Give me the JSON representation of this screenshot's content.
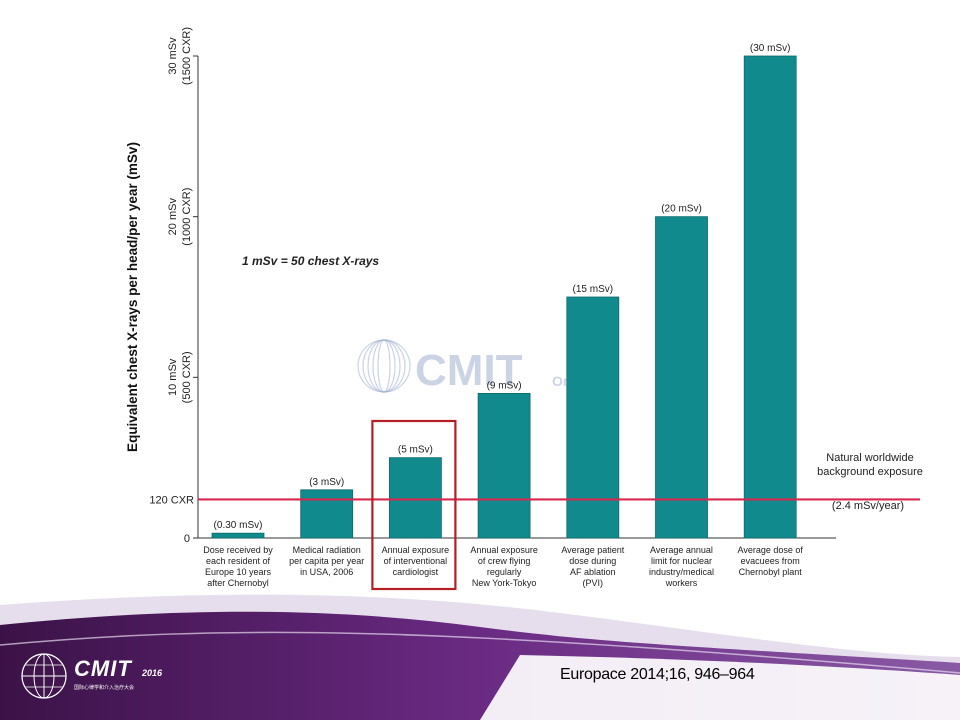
{
  "chart_data": {
    "type": "bar",
    "ylabel": "Equivalent chest X-rays per head/per year (mSv)",
    "ylim": [
      0,
      30
    ],
    "yticks": [
      {
        "value": 0,
        "lines": [
          "0"
        ]
      },
      {
        "value": 10,
        "lines": [
          "10 mSv",
          "(500 CXR)"
        ]
      },
      {
        "value": 20,
        "lines": [
          "20 mSv",
          "(1000 CXR)"
        ]
      },
      {
        "value": 30,
        "lines": [
          "30 mSv",
          "(1500 CXR)"
        ]
      }
    ],
    "categories": [
      [
        "Dose received by",
        "each resident of",
        "Europe 10 years",
        "after Chernobyl"
      ],
      [
        "Medical radiation",
        "per capita per year",
        "in USA, 2006"
      ],
      [
        "Annual exposure",
        "of interventional",
        "cardiologist"
      ],
      [
        "Annual exposure",
        "of crew flying",
        "regularly",
        "New York-Tokyo"
      ],
      [
        "Average patient",
        "dose during",
        "AF ablation",
        "(PVI)"
      ],
      [
        "Average annual",
        "limit for nuclear",
        "industry/medical",
        "workers"
      ],
      [
        "Average dose of",
        "evacuees from",
        "Chernobyl plant"
      ]
    ],
    "values": [
      0.3,
      3,
      5,
      9,
      15,
      20,
      30
    ],
    "value_labels": [
      "(0.30 mSv)",
      "(3 mSv)",
      "(5 mSv)",
      "(9 mSv)",
      "(15 mSv)",
      "(20 mSv)",
      "(30 mSv)"
    ],
    "highlighted_index": 2,
    "reference_line": {
      "value": 2.4,
      "axis_label": "120 CXR",
      "label_lines": [
        "Natural worldwide",
        "background exposure"
      ],
      "sub_label": "(2.4 mSv/year)"
    },
    "annotation": "1 mSv = 50 chest X-rays",
    "grid": false,
    "colors": {
      "bar": "#118a8e",
      "reference_line": "#d8284f",
      "highlight_box": "#b51f24"
    }
  },
  "watermark": {
    "main": "CMIT",
    "sub": "Online"
  },
  "logo": {
    "name": "CMIT",
    "year": "2016",
    "subtitle": "国际心律学和介入治疗大会"
  },
  "citation": "Europace 2014;16, 946–964"
}
